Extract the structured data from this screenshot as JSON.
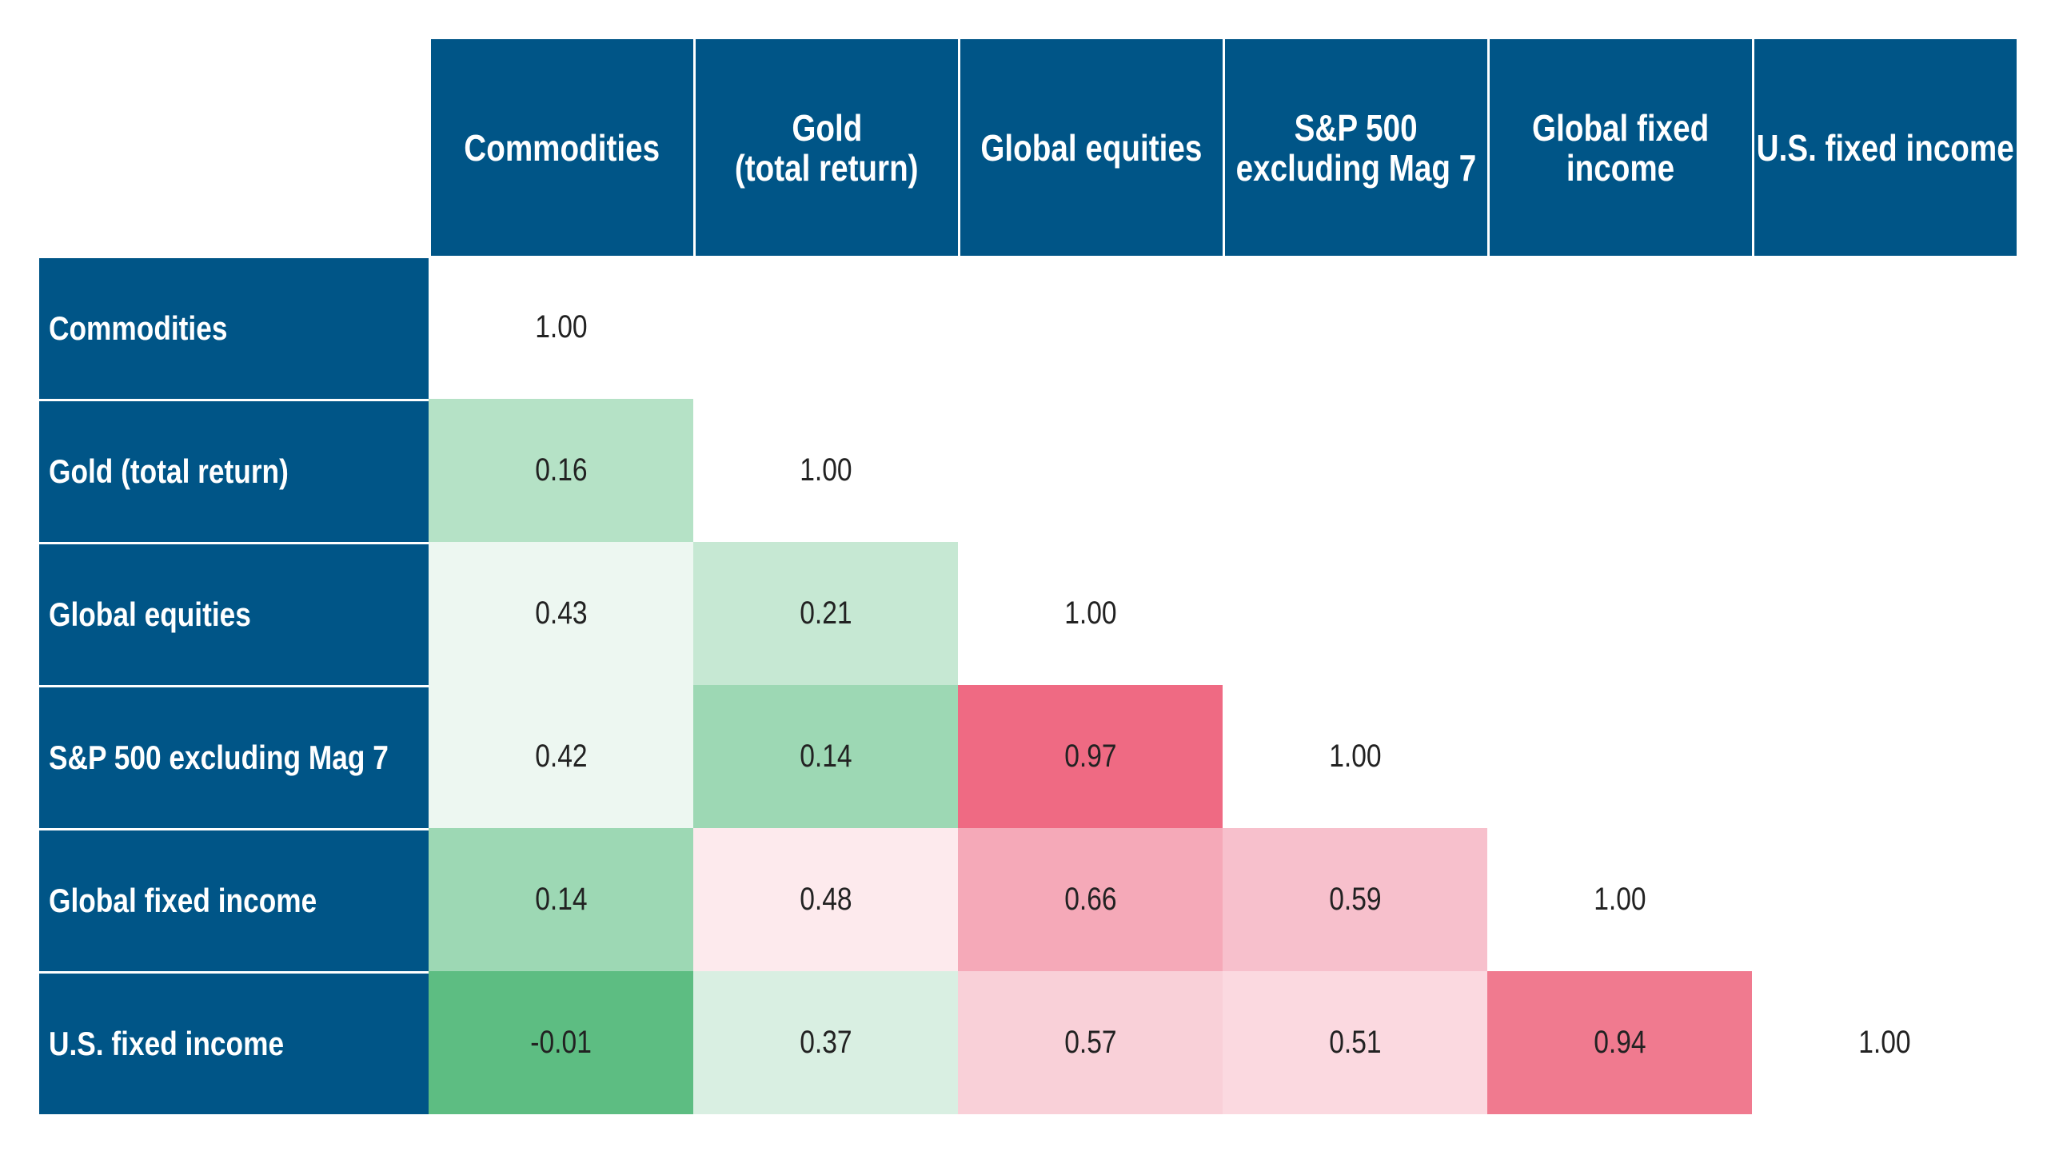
{
  "table": {
    "columns": [
      [
        "Commodities"
      ],
      [
        "Gold",
        "(total return)"
      ],
      [
        "Global equities"
      ],
      [
        "S&P 500",
        "excluding Mag 7"
      ],
      [
        "Global fixed",
        "income"
      ],
      [
        "U.S. fixed income"
      ]
    ],
    "rows": [
      {
        "label": "Commodities",
        "cells": [
          "1.00"
        ],
        "colors": [
          "#ffffff"
        ]
      },
      {
        "label": "Gold (total return)",
        "cells": [
          "0.16",
          "1.00"
        ],
        "colors": [
          "#b5e2c6",
          "#ffffff"
        ]
      },
      {
        "label": "Global equities",
        "cells": [
          "0.43",
          "0.21",
          "1.00"
        ],
        "colors": [
          "#edf7f1",
          "#c6e8d3",
          "#ffffff"
        ]
      },
      {
        "label": "S&P 500 excluding Mag 7",
        "cells": [
          "0.42",
          "0.14",
          "0.97",
          "1.00"
        ],
        "colors": [
          "#edf7f1",
          "#9dd8b4",
          "#ef6a83",
          "#ffffff"
        ]
      },
      {
        "label": "Global fixed income",
        "cells": [
          "0.14",
          "0.48",
          "0.66",
          "0.59",
          "1.00"
        ],
        "colors": [
          "#9dd8b4",
          "#fdeaed",
          "#f5a9b8",
          "#f7c0cc",
          "#ffffff"
        ]
      },
      {
        "label": "U.S. fixed income",
        "cells": [
          "-0.01",
          "0.37",
          "0.57",
          "0.51",
          "0.94",
          "1.00"
        ],
        "colors": [
          "#5dbd82",
          "#d9efe2",
          "#f9d0d8",
          "#fbd9e0",
          "#f07a8f",
          "#ffffff"
        ]
      }
    ]
  }
}
